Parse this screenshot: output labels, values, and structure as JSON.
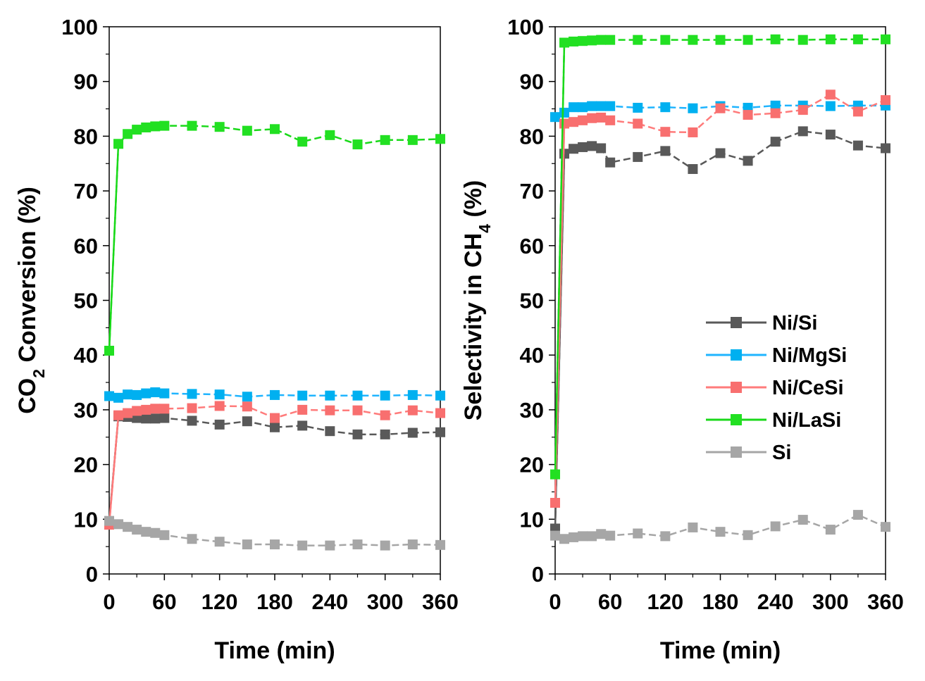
{
  "chart_data": [
    {
      "type": "line",
      "ylabel_parts": [
        "CO",
        "2",
        " Conversion (%)"
      ],
      "xlabel": "Time (min)",
      "xlim": [
        0,
        360
      ],
      "ylim": [
        0,
        100
      ],
      "xticks": [
        "0",
        "60",
        "120",
        "180",
        "240",
        "300",
        "360"
      ],
      "yticks": [
        "0",
        "10",
        "20",
        "30",
        "40",
        "50",
        "60",
        "70",
        "80",
        "90",
        "100"
      ],
      "grid": false,
      "legend": "none",
      "x": [
        0,
        10,
        20,
        30,
        40,
        50,
        60,
        90,
        120,
        150,
        180,
        210,
        240,
        270,
        300,
        330,
        360
      ],
      "series": [
        {
          "name": "Ni/Si",
          "color": "#595959",
          "marker_color": "#595959",
          "values": [
            9.5,
            28.8,
            28.7,
            28.5,
            28.4,
            28.4,
            28.5,
            28.0,
            27.3,
            27.9,
            26.8,
            27.1,
            26.1,
            25.5,
            25.5,
            25.8,
            25.9
          ]
        },
        {
          "name": "Ni/MgSi",
          "color": "#1fb4ff",
          "marker_color": "#00b0f0",
          "values": [
            32.5,
            32.2,
            32.8,
            32.7,
            33.0,
            33.2,
            33.0,
            32.9,
            32.8,
            32.4,
            32.7,
            32.6,
            32.6,
            32.6,
            32.6,
            32.7,
            32.6
          ]
        },
        {
          "name": "Ni/CeSi",
          "color": "#ff7b7b",
          "marker_color": "#f86f6f",
          "values": [
            9.0,
            29.0,
            29.4,
            29.8,
            30.0,
            30.2,
            30.2,
            30.3,
            30.7,
            30.6,
            28.5,
            30.0,
            29.9,
            29.9,
            29.0,
            29.9,
            29.4
          ]
        },
        {
          "name": "Ni/LaSi",
          "color": "#19d919",
          "marker_color": "#22e022",
          "values": [
            40.8,
            78.6,
            80.4,
            81.2,
            81.6,
            81.8,
            81.9,
            81.9,
            81.7,
            81.0,
            81.3,
            79.0,
            80.2,
            78.5,
            79.3,
            79.3,
            79.5
          ]
        },
        {
          "name": "Si",
          "color": "#a6a6a6",
          "marker_color": "#a6a6a6",
          "values": [
            9.7,
            9.1,
            8.6,
            8.1,
            7.7,
            7.5,
            7.1,
            6.4,
            5.9,
            5.4,
            5.4,
            5.2,
            5.2,
            5.4,
            5.2,
            5.4,
            5.3
          ]
        }
      ]
    },
    {
      "type": "line",
      "ylabel_parts": [
        "Selectivity in CH",
        "4",
        " (%)"
      ],
      "xlabel": "Time (min)",
      "xlim": [
        0,
        360
      ],
      "ylim": [
        0,
        100
      ],
      "xticks": [
        "0",
        "60",
        "120",
        "180",
        "240",
        "300",
        "360"
      ],
      "yticks": [
        "0",
        "10",
        "20",
        "30",
        "40",
        "50",
        "60",
        "70",
        "80",
        "90",
        "100"
      ],
      "grid": false,
      "legend": "center-right",
      "x": [
        0,
        10,
        20,
        30,
        40,
        50,
        60,
        90,
        120,
        150,
        180,
        210,
        240,
        270,
        300,
        330,
        360
      ],
      "series": [
        {
          "name": "Ni/Si",
          "color": "#595959",
          "marker_color": "#595959",
          "values": [
            8.3,
            76.8,
            77.7,
            78.0,
            78.2,
            77.8,
            75.2,
            76.2,
            77.3,
            74.0,
            76.9,
            75.5,
            79.0,
            80.9,
            80.3,
            78.3,
            77.8
          ]
        },
        {
          "name": "Ni/MgSi",
          "color": "#1fb4ff",
          "marker_color": "#00b0f0",
          "values": [
            83.5,
            84.3,
            85.3,
            85.3,
            85.5,
            85.5,
            85.5,
            85.2,
            85.3,
            85.1,
            85.5,
            85.2,
            85.6,
            85.6,
            85.5,
            85.6,
            85.6
          ]
        },
        {
          "name": "Ni/CeSi",
          "color": "#ff7b7b",
          "marker_color": "#f86f6f",
          "values": [
            13.0,
            82.3,
            82.6,
            82.9,
            83.3,
            83.4,
            82.9,
            82.3,
            80.8,
            80.7,
            85.1,
            83.9,
            84.2,
            84.8,
            87.6,
            84.5,
            86.6
          ]
        },
        {
          "name": "Ni/LaSi",
          "color": "#19d919",
          "marker_color": "#22e022",
          "values": [
            18.2,
            97.1,
            97.3,
            97.4,
            97.5,
            97.6,
            97.6,
            97.6,
            97.6,
            97.6,
            97.6,
            97.6,
            97.7,
            97.6,
            97.7,
            97.7,
            97.7
          ]
        },
        {
          "name": "Si",
          "color": "#a6a6a6",
          "marker_color": "#a6a6a6",
          "values": [
            7.0,
            6.4,
            6.7,
            6.9,
            6.9,
            7.3,
            7.0,
            7.4,
            6.9,
            8.5,
            7.7,
            7.1,
            8.7,
            9.9,
            8.1,
            10.8,
            8.6
          ]
        }
      ]
    }
  ]
}
